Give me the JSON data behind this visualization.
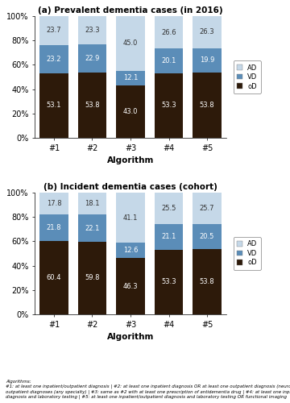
{
  "title_a": "(a) Prevalent dementia cases (in 2016)",
  "title_b": "(b) Incident dementia cases (cohort)",
  "xlabel": "Algorithm",
  "categories": [
    "#1",
    "#2",
    "#3",
    "#4",
    "#5"
  ],
  "prevalent": {
    "AD": [
      23.7,
      23.3,
      45.0,
      26.6,
      26.3
    ],
    "VD": [
      23.2,
      22.9,
      12.1,
      20.1,
      19.9
    ],
    "oD": [
      53.1,
      53.8,
      43.0,
      53.3,
      53.8
    ]
  },
  "incident": {
    "AD": [
      17.8,
      18.1,
      41.1,
      25.5,
      25.7
    ],
    "VD": [
      21.8,
      22.1,
      12.6,
      21.1,
      20.5
    ],
    "oD": [
      60.4,
      59.8,
      46.3,
      53.3,
      53.8
    ]
  },
  "colors": {
    "AD": "#c5d8e8",
    "VD": "#5b8db8",
    "oD": "#2d1a0a"
  },
  "footnote": "Algorithms:\n#1: at least one inpatient/outpatient diagnosis | #2: at least one inpatient diagnosis OR at least one outpatient diagnosis (neurologist) OR two\noutpatient diagnoses (any specialty) | #3: same as #2 with at least one prescription of antidementia drug | #4: at least one inpatient/outpatient\ndiagnosis and laboratory testing | #5: at least one inpatient/outpatient diagnosis and laboratory testing OR functional imaging",
  "bar_width": 0.75,
  "ylim": [
    0,
    100
  ],
  "yticks": [
    0,
    20,
    40,
    60,
    80,
    100
  ],
  "yticklabels": [
    "0%",
    "20%",
    "40%",
    "60%",
    "80%",
    "100%"
  ]
}
